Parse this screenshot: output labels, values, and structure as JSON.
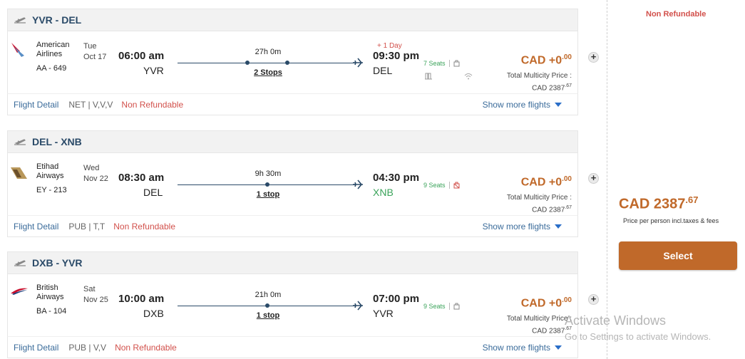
{
  "segments": [
    {
      "route": "YVR - DEL",
      "airline": "American Airlines",
      "flight_code": "AA - 649",
      "day": "Tue",
      "date": "Oct 17",
      "dep_time": "06:00 am",
      "dep_airport": "YVR",
      "duration": "27h 0m",
      "stops": "2 Stops",
      "plus_day": "+ 1 Day",
      "arr_time": "09:30 pm",
      "arr_airport": "DEL",
      "seats": "7 Seats",
      "price": "CAD +0",
      "price_cents": ".00",
      "total_label": "Total Multicity Price :",
      "total_value": "CAD 2387",
      "total_cents": ".67",
      "detail_link": "Flight Detail",
      "fare": "NET | V,V,V",
      "refund": "Non Refundable",
      "more": "Show more flights"
    },
    {
      "route": "DEL - XNB",
      "airline": "Etihad Airways",
      "flight_code": "EY - 213",
      "day": "Wed",
      "date": "Nov 22",
      "dep_time": "08:30 am",
      "dep_airport": "DEL",
      "duration": "9h 30m",
      "stops": "1 stop",
      "plus_day": "",
      "arr_time": "04:30 pm",
      "arr_airport": "XNB",
      "seats": "9 Seats",
      "price": "CAD +0",
      "price_cents": ".00",
      "total_label": "Total Multicity Price :",
      "total_value": "CAD 2387",
      "total_cents": ".67",
      "detail_link": "Flight Detail",
      "fare": "PUB | T,T",
      "refund": "Non Refundable",
      "more": "Show more flights"
    },
    {
      "route": "DXB - YVR",
      "airline": "British Airways",
      "flight_code": "BA - 104",
      "day": "Sat",
      "date": "Nov 25",
      "dep_time": "10:00 am",
      "dep_airport": "DXB",
      "duration": "21h 0m",
      "stops": "1 stop",
      "plus_day": "",
      "arr_time": "07:00 pm",
      "arr_airport": "YVR",
      "seats": "9 Seats",
      "price": "CAD +0",
      "price_cents": ".00",
      "total_label": "Total Multicity Price :",
      "total_value": "CAD 2387",
      "total_cents": ".67",
      "detail_link": "Flight Detail",
      "fare": "PUB | V,V",
      "refund": "Non Refundable",
      "more": "Show more flights"
    }
  ],
  "summary": {
    "refund": "Non Refundable",
    "price": "CAD 2387",
    "price_cents": ".67",
    "note": "Price per person incl.taxes & fees",
    "select": "Select"
  },
  "watermark": {
    "line1": "Activate Windows",
    "line2": "Go to Settings to activate Windows."
  },
  "colors": {
    "accent": "#c0692a",
    "route": "#2a4a68",
    "refund": "#d2504b",
    "seats": "#3aa35a"
  }
}
